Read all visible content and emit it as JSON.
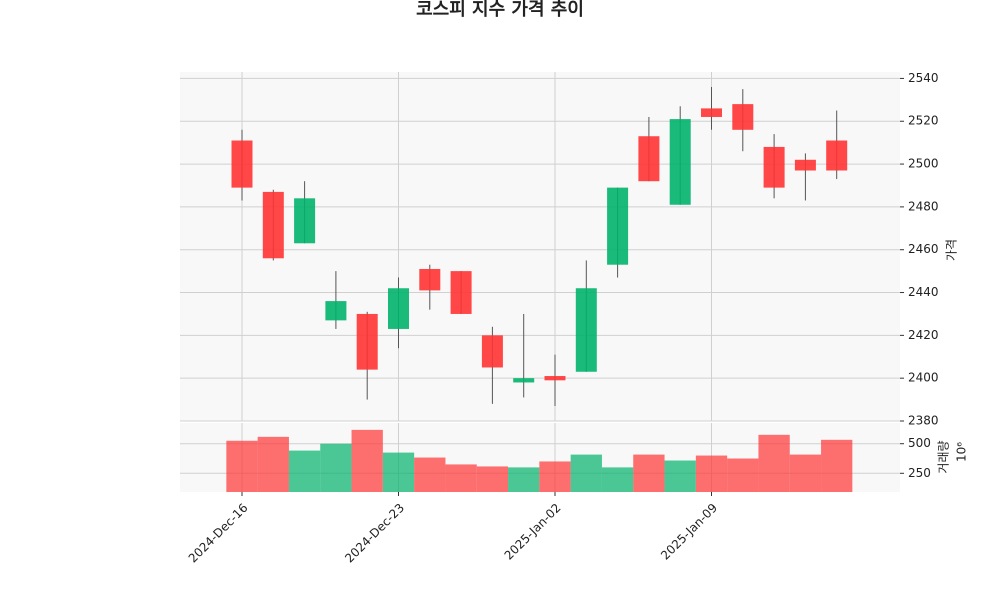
{
  "chart_data": {
    "type": "candlestick",
    "title": "코스피 지수 가격 추이",
    "categories": [
      "2024-Dec-16",
      null,
      null,
      null,
      null,
      "2024-Dec-23",
      null,
      null,
      null,
      null,
      "2025-Jan-02",
      null,
      null,
      null,
      null,
      "2025-Jan-09",
      null,
      null,
      null,
      null
    ],
    "open": [
      2489,
      2456,
      2484,
      2436,
      2404,
      2442,
      2441,
      2430,
      2405,
      2400,
      2399,
      2442,
      2489,
      2492,
      2521,
      2522,
      2516,
      2489,
      2497,
      2497
    ],
    "high": [
      2516,
      2488,
      2492,
      2450,
      2431,
      2447,
      2453,
      2450,
      2424,
      2430,
      2411,
      2455,
      2489,
      2522,
      2527,
      2536,
      2535,
      2514,
      2505,
      2525
    ],
    "low": [
      2483,
      2455,
      2463,
      2423,
      2390,
      2414,
      2432,
      2430,
      2388,
      2391,
      2387,
      2403,
      2447,
      2492,
      2481,
      2516,
      2506,
      2484,
      2483,
      2493
    ],
    "close": [
      2511,
      2487,
      2463,
      2427,
      2430,
      2423,
      2451,
      2450,
      2420,
      2398,
      2401,
      2403,
      2453,
      2513,
      2481,
      2526,
      2528,
      2508,
      2502,
      2511
    ],
    "volume": [
      525,
      558,
      442,
      500,
      617,
      425,
      383,
      325,
      308,
      300,
      350,
      408,
      300,
      408,
      358,
      400,
      375,
      575,
      408,
      533
    ],
    "up_color": "#ff3333",
    "down_color": "#00b26b",
    "ylabel": "가격",
    "ylim": [
      2380,
      2543
    ],
    "yticks": [
      2380,
      2400,
      2420,
      2440,
      2460,
      2480,
      2500,
      2520,
      2540
    ],
    "volume_label": "거래량",
    "volume_scale_label": "10⁶",
    "volume_ylim": [
      92,
      675
    ],
    "volume_yticks": [
      250,
      500
    ],
    "grid": true
  }
}
